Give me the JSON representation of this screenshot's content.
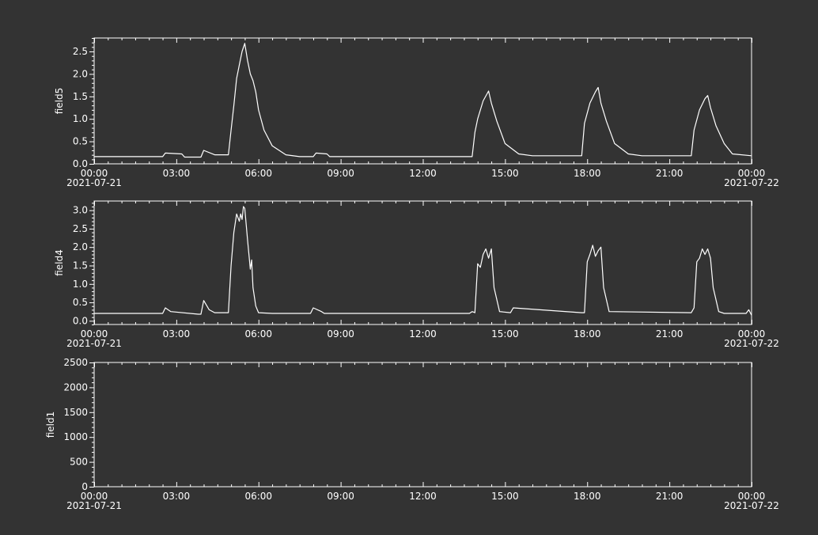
{
  "colors": {
    "background": "#333333",
    "axes": "#ffffff",
    "line": "#ffffff"
  },
  "x_axis": {
    "ticks": [
      "00:00",
      "03:00",
      "06:00",
      "09:00",
      "12:00",
      "15:00",
      "18:00",
      "21:00",
      "00:00"
    ],
    "start_date": "2021-07-21",
    "end_date": "2021-07-22",
    "range_hours": [
      0,
      24
    ]
  },
  "chart_data": [
    {
      "type": "line",
      "ylabel": "field5",
      "ylim": [
        0,
        2.8
      ],
      "yticks": [
        "0.0",
        "0.5",
        "1.0",
        "1.5",
        "2.0",
        "2.5"
      ],
      "ytick_values": [
        0,
        0.5,
        1.0,
        1.5,
        2.0,
        2.5
      ],
      "grid": false,
      "x_hours": [
        0,
        2.5,
        2.6,
        3.2,
        3.3,
        3.9,
        4.0,
        4.4,
        4.9,
        5.0,
        5.1,
        5.2,
        5.3,
        5.4,
        5.5,
        5.6,
        5.7,
        5.8,
        5.9,
        6.0,
        6.2,
        6.5,
        7.0,
        7.5,
        8.0,
        8.1,
        8.5,
        8.6,
        13.8,
        13.9,
        14.0,
        14.2,
        14.4,
        14.5,
        14.7,
        15.0,
        15.5,
        16.0,
        17.8,
        17.9,
        18.1,
        18.3,
        18.4,
        18.5,
        18.7,
        19.0,
        19.5,
        20.0,
        21.8,
        21.9,
        22.1,
        22.3,
        22.4,
        22.5,
        22.7,
        23.0,
        23.3,
        24.0
      ],
      "values": [
        0.16,
        0.16,
        0.24,
        0.22,
        0.15,
        0.15,
        0.3,
        0.2,
        0.2,
        0.75,
        1.3,
        1.9,
        2.2,
        2.5,
        2.68,
        2.3,
        2.0,
        1.85,
        1.6,
        1.2,
        0.75,
        0.4,
        0.2,
        0.16,
        0.16,
        0.24,
        0.22,
        0.16,
        0.16,
        0.7,
        1.0,
        1.4,
        1.62,
        1.35,
        0.95,
        0.45,
        0.22,
        0.18,
        0.18,
        0.9,
        1.35,
        1.6,
        1.7,
        1.35,
        0.95,
        0.45,
        0.22,
        0.18,
        0.18,
        0.75,
        1.2,
        1.45,
        1.52,
        1.25,
        0.85,
        0.45,
        0.22,
        0.18
      ]
    },
    {
      "type": "line",
      "ylabel": "field4",
      "ylim": [
        -0.1,
        3.25
      ],
      "yticks": [
        "0.0",
        "0.5",
        "1.0",
        "1.5",
        "2.0",
        "2.5",
        "3.0"
      ],
      "ytick_values": [
        0,
        0.5,
        1.0,
        1.5,
        2.0,
        2.5,
        3.0
      ],
      "grid": false,
      "x_hours": [
        0,
        2.5,
        2.6,
        2.8,
        3.8,
        3.9,
        4.0,
        4.2,
        4.4,
        4.9,
        5.0,
        5.1,
        5.2,
        5.3,
        5.35,
        5.4,
        5.45,
        5.5,
        5.6,
        5.7,
        5.75,
        5.8,
        5.9,
        6.0,
        6.5,
        7.9,
        8.0,
        8.3,
        8.4,
        13.7,
        13.8,
        13.9,
        14.0,
        14.1,
        14.2,
        14.3,
        14.4,
        14.5,
        14.6,
        14.8,
        15.2,
        15.3,
        17.8,
        17.9,
        18.0,
        18.1,
        18.2,
        18.3,
        18.4,
        18.5,
        18.6,
        18.8,
        21.8,
        21.9,
        22.0,
        22.1,
        22.2,
        22.3,
        22.4,
        22.5,
        22.6,
        22.8,
        23.0,
        23.8,
        23.9,
        24.0
      ],
      "values": [
        0.2,
        0.2,
        0.35,
        0.25,
        0.18,
        0.18,
        0.55,
        0.3,
        0.22,
        0.22,
        1.5,
        2.4,
        2.9,
        2.7,
        2.9,
        2.75,
        3.1,
        3.05,
        2.2,
        1.4,
        1.65,
        0.9,
        0.4,
        0.22,
        0.2,
        0.2,
        0.35,
        0.25,
        0.2,
        0.2,
        0.25,
        0.22,
        1.55,
        1.45,
        1.8,
        1.95,
        1.7,
        1.95,
        0.9,
        0.25,
        0.22,
        0.35,
        0.22,
        0.22,
        1.6,
        1.8,
        2.05,
        1.75,
        1.9,
        2.0,
        0.9,
        0.25,
        0.22,
        0.35,
        1.6,
        1.7,
        1.95,
        1.8,
        1.95,
        1.7,
        0.9,
        0.25,
        0.2,
        0.2,
        0.3,
        0.15
      ]
    },
    {
      "type": "line",
      "ylabel": "field1",
      "ylim": [
        0,
        2500
      ],
      "yticks": [
        "0",
        "500",
        "1000",
        "1500",
        "2000",
        "2500"
      ],
      "ytick_values": [
        0,
        500,
        1000,
        1500,
        2000,
        2500
      ],
      "grid": false,
      "x_hours": [],
      "values": []
    }
  ]
}
